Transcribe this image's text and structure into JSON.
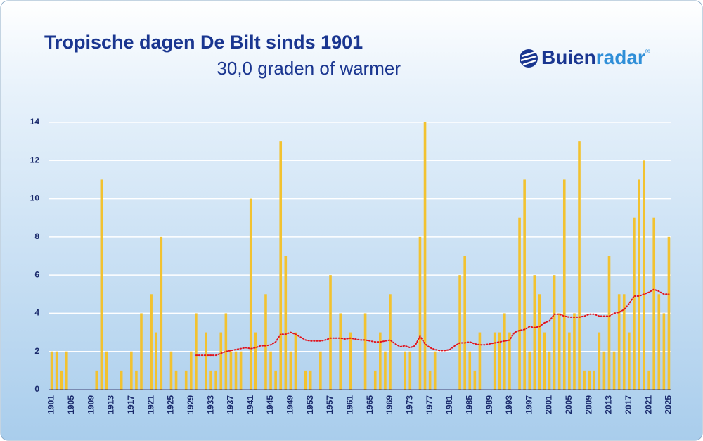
{
  "chart_data": {
    "type": "bar",
    "title": "Tropische dagen De Bilt sinds 1901",
    "subtitle": "30,0 graden of warmer",
    "logo": {
      "part1": "Buien",
      "part2": "radar",
      "mark": "®"
    },
    "categories": [
      "1901",
      null,
      null,
      null,
      "1905",
      null,
      null,
      null,
      "1909",
      null,
      null,
      null,
      "1913",
      null,
      null,
      null,
      "1917",
      null,
      null,
      null,
      "1921",
      null,
      null,
      null,
      "1925",
      null,
      null,
      null,
      "1929",
      null,
      null,
      null,
      "1933",
      null,
      null,
      null,
      "1937",
      null,
      null,
      null,
      "1941",
      null,
      null,
      null,
      "1945",
      null,
      null,
      null,
      "1949",
      null,
      null,
      null,
      "1953",
      null,
      null,
      null,
      "1957",
      null,
      null,
      null,
      "1961",
      null,
      null,
      null,
      "1965",
      null,
      null,
      null,
      "1969",
      null,
      null,
      null,
      "1973",
      null,
      null,
      null,
      "1977",
      null,
      null,
      null,
      "1981",
      null,
      null,
      null,
      "1985",
      null,
      null,
      null,
      "1989",
      null,
      null,
      null,
      "1993",
      null,
      null,
      null,
      "1997",
      null,
      null,
      null,
      "2001",
      null,
      null,
      null,
      "2005",
      null,
      null,
      null,
      "2009",
      null,
      null,
      null,
      "2013",
      null,
      null,
      null,
      "2017",
      null,
      null,
      null,
      "2021",
      null,
      null,
      null,
      "2025"
    ],
    "values": [
      2,
      2,
      1,
      2,
      0,
      0,
      0,
      0,
      0,
      1,
      11,
      2,
      0,
      0,
      1,
      0,
      2,
      1,
      4,
      0,
      5,
      3,
      8,
      0,
      2,
      1,
      0,
      1,
      2,
      4,
      0,
      3,
      1,
      1,
      3,
      4,
      2,
      2,
      2,
      0,
      10,
      3,
      0,
      5,
      2,
      1,
      13,
      7,
      2,
      3,
      0,
      1,
      1,
      0,
      2,
      0,
      6,
      0,
      4,
      0,
      3,
      0,
      0,
      4,
      0,
      1,
      3,
      2,
      5,
      0,
      0,
      2,
      2,
      0,
      8,
      14,
      1,
      2,
      0,
      0,
      0,
      0,
      6,
      7,
      2,
      1,
      3,
      0,
      0,
      3,
      3,
      4,
      3,
      0,
      9,
      11,
      2,
      6,
      5,
      3,
      2,
      6,
      4,
      11,
      3,
      4,
      13,
      1,
      1,
      1,
      3,
      2,
      7,
      2,
      5,
      5,
      3,
      9,
      11,
      12,
      1,
      9,
      5,
      4,
      8
    ],
    "color": "#f2c230",
    "trend": {
      "color": "#e0141e",
      "values": [
        null,
        null,
        null,
        null,
        null,
        null,
        null,
        null,
        null,
        null,
        null,
        null,
        null,
        null,
        null,
        null,
        null,
        null,
        null,
        null,
        null,
        null,
        null,
        null,
        null,
        null,
        null,
        null,
        null,
        1.8,
        1.8,
        1.8,
        1.8,
        1.8,
        1.9,
        2.0,
        2.05,
        2.1,
        2.15,
        2.2,
        2.15,
        2.2,
        2.3,
        2.3,
        2.35,
        2.5,
        2.9,
        2.9,
        3.0,
        2.9,
        2.75,
        2.6,
        2.55,
        2.55,
        2.55,
        2.6,
        2.7,
        2.7,
        2.7,
        2.65,
        2.7,
        2.65,
        2.6,
        2.6,
        2.55,
        2.5,
        2.5,
        2.55,
        2.6,
        2.4,
        2.25,
        2.3,
        2.2,
        2.3,
        2.8,
        2.4,
        2.2,
        2.1,
        2.05,
        2.05,
        2.1,
        2.3,
        2.45,
        2.45,
        2.5,
        2.4,
        2.35,
        2.35,
        2.4,
        2.45,
        2.5,
        2.55,
        2.6,
        3.0,
        3.1,
        3.15,
        3.3,
        3.25,
        3.3,
        3.5,
        3.6,
        3.95,
        3.95,
        3.85,
        3.8,
        3.8,
        3.8,
        3.85,
        3.95,
        3.95,
        3.85,
        3.85,
        3.85,
        4.0,
        4.05,
        4.2,
        4.5,
        4.9,
        4.9,
        5.0,
        5.1,
        5.25,
        5.15,
        5.0,
        5.0
      ]
    },
    "ylim": [
      0,
      14
    ],
    "yticks": [
      0,
      2,
      4,
      6,
      8,
      10,
      12,
      14
    ],
    "grid": true
  }
}
